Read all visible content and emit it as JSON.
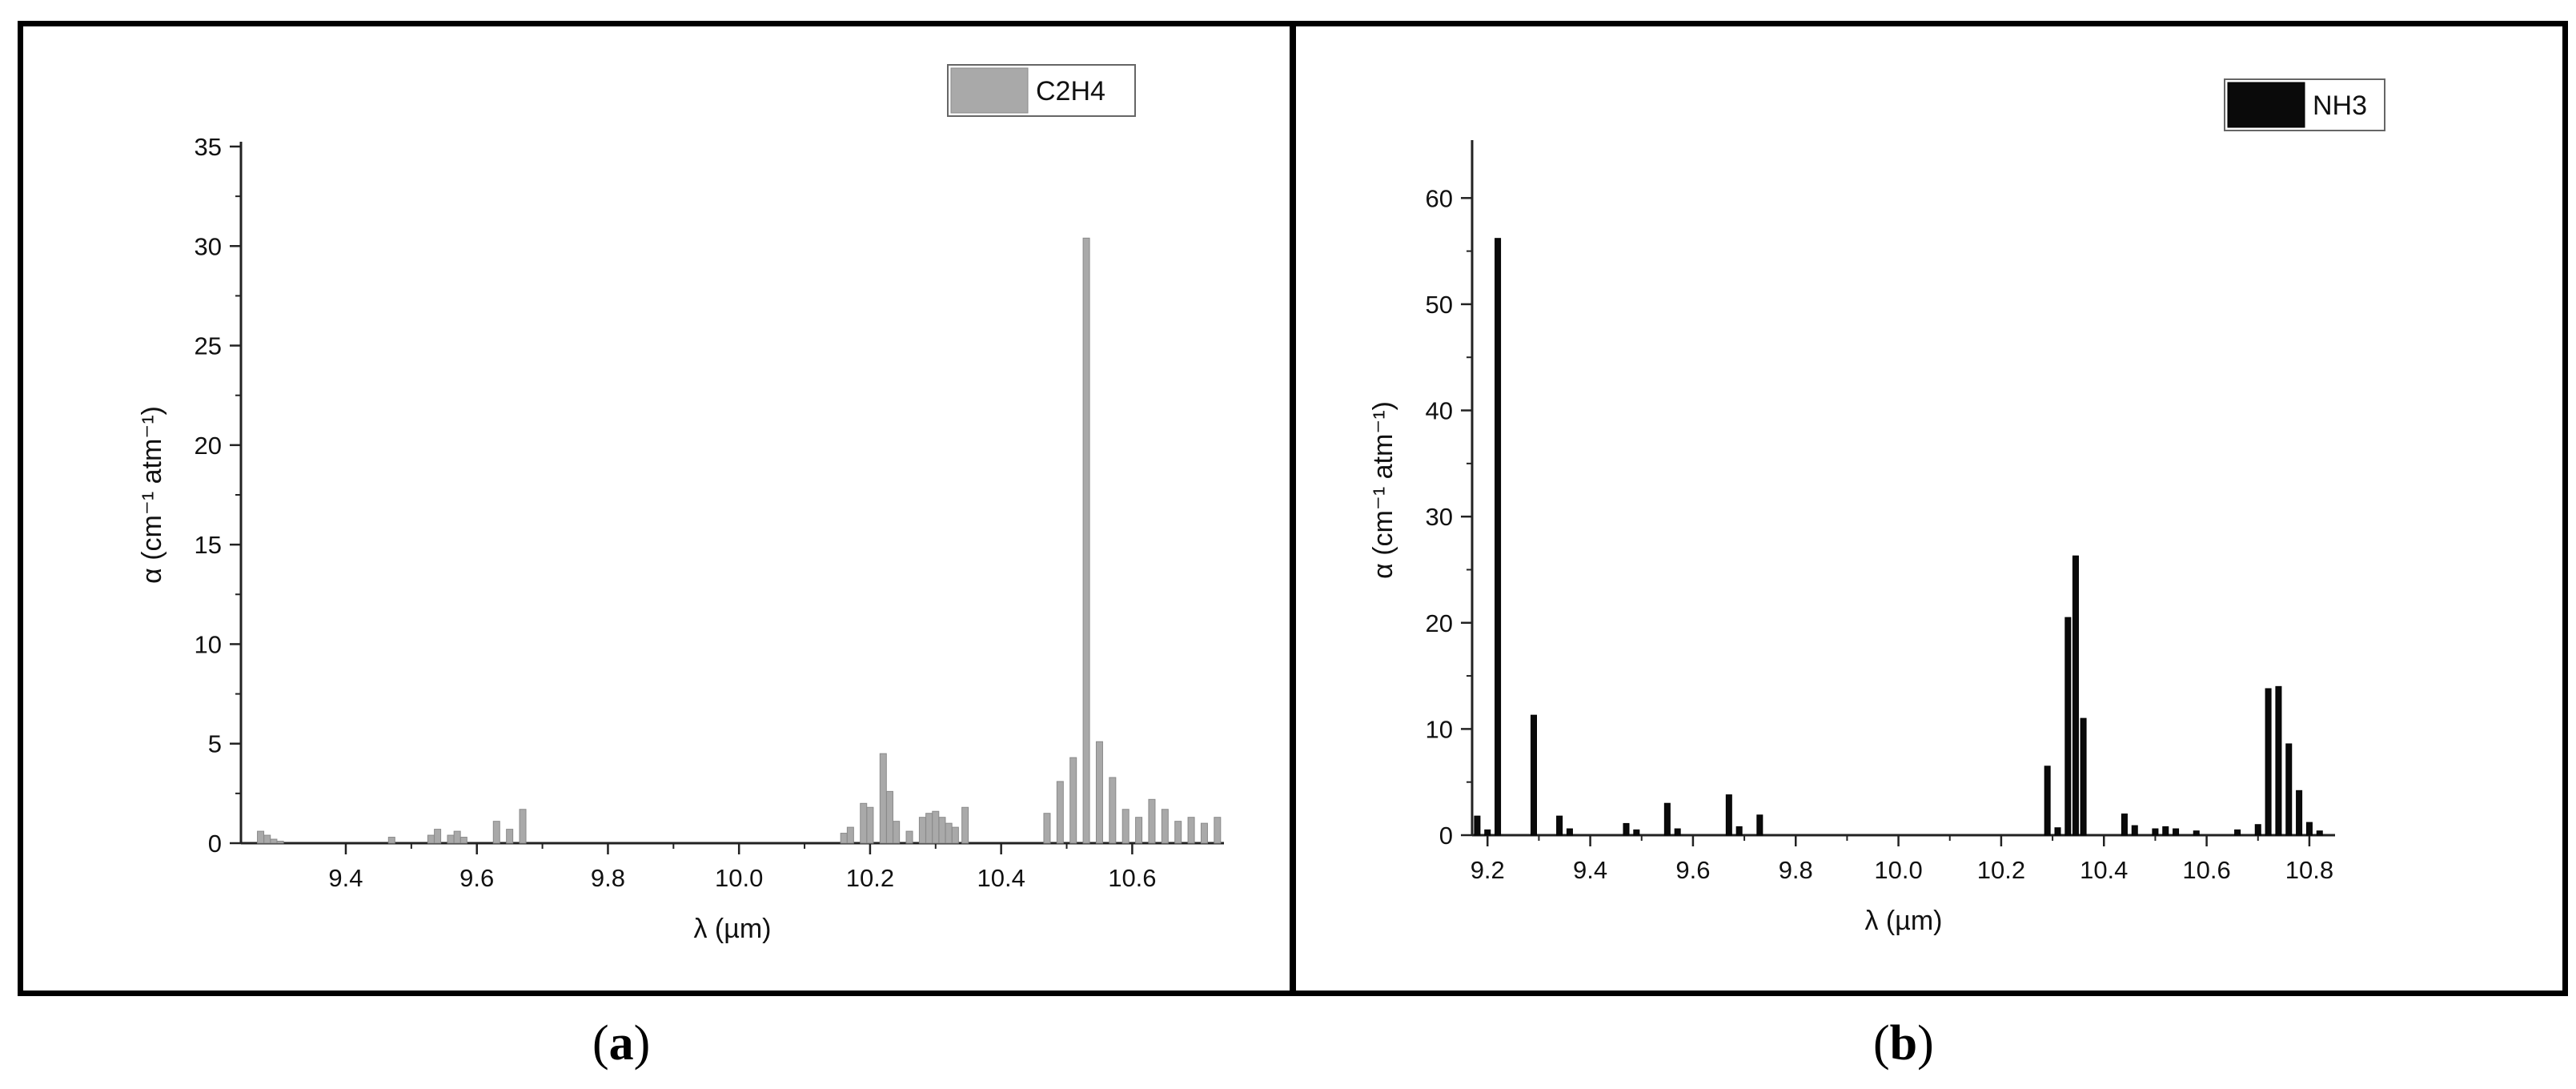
{
  "chart_data": [
    {
      "panel_label": "a",
      "type": "bar",
      "xlabel": "λ (µm)",
      "ylabel": "α (cm⁻¹ atm⁻¹)",
      "xlim": [
        9.24,
        10.74
      ],
      "ylim": [
        0,
        35
      ],
      "xticks": [
        9.4,
        9.6,
        9.8,
        10.0,
        10.2,
        10.4,
        10.6
      ],
      "yticks": [
        0,
        5,
        10,
        15,
        20,
        25,
        30,
        35
      ],
      "grid": false,
      "legend_position": "top-right",
      "color": "#a9a9a9",
      "series": [
        {
          "name": "C2H4",
          "x": [
            9.27,
            9.28,
            9.29,
            9.3,
            9.47,
            9.53,
            9.54,
            9.56,
            9.57,
            9.58,
            9.63,
            9.65,
            9.67,
            10.16,
            10.17,
            10.19,
            10.2,
            10.22,
            10.23,
            10.24,
            10.26,
            10.28,
            10.29,
            10.3,
            10.31,
            10.32,
            10.33,
            10.345,
            10.47,
            10.49,
            10.51,
            10.53,
            10.55,
            10.57,
            10.59,
            10.61,
            10.63,
            10.65,
            10.67,
            10.69,
            10.71,
            10.73
          ],
          "values": [
            0.6,
            0.4,
            0.2,
            0.1,
            0.3,
            0.4,
            0.7,
            0.4,
            0.6,
            0.3,
            1.1,
            0.7,
            1.7,
            0.5,
            0.8,
            2.0,
            1.8,
            4.5,
            2.6,
            1.1,
            0.6,
            1.3,
            1.5,
            1.6,
            1.3,
            1.0,
            0.8,
            1.8,
            1.5,
            3.1,
            4.3,
            30.4,
            5.1,
            3.3,
            1.7,
            1.3,
            2.2,
            1.7,
            1.1,
            1.3,
            1.0,
            1.3
          ]
        }
      ]
    },
    {
      "panel_label": "b",
      "type": "bar",
      "xlabel": "λ (µm)",
      "ylabel": "α (cm⁻¹ atm⁻¹)",
      "xlim": [
        9.17,
        10.85
      ],
      "ylim": [
        0,
        65
      ],
      "xticks": [
        9.2,
        9.4,
        9.6,
        9.8,
        10.0,
        10.2,
        10.4,
        10.6,
        10.8
      ],
      "xticklabels": [
        "9.2",
        "9.4",
        "9.6",
        "9.8",
        "10.0",
        "10.2",
        "10.4",
        "10.6",
        "10.8"
      ],
      "yticks": [
        0,
        10,
        20,
        30,
        40,
        50,
        60
      ],
      "grid": false,
      "legend_position": "top-right",
      "color": "#0a0a0a",
      "series": [
        {
          "name": "NH3",
          "x": [
            9.18,
            9.2,
            9.22,
            9.29,
            9.34,
            9.36,
            9.47,
            9.49,
            9.55,
            9.57,
            9.67,
            9.69,
            9.73,
            10.29,
            10.31,
            10.33,
            10.345,
            10.36,
            10.44,
            10.46,
            10.5,
            10.52,
            10.54,
            10.58,
            10.66,
            10.7,
            10.72,
            10.74,
            10.76,
            10.78,
            10.8,
            10.82
          ],
          "values": [
            1.8,
            0.5,
            56.2,
            11.3,
            1.8,
            0.6,
            1.1,
            0.5,
            3.0,
            0.6,
            3.8,
            0.8,
            1.9,
            6.5,
            0.7,
            20.5,
            26.3,
            11.0,
            2.0,
            0.9,
            0.6,
            0.8,
            0.6,
            0.4,
            0.5,
            1.0,
            13.8,
            14.0,
            8.6,
            4.2,
            1.2,
            0.4
          ]
        }
      ]
    }
  ],
  "captions": {
    "a": "a",
    "b": "b"
  }
}
